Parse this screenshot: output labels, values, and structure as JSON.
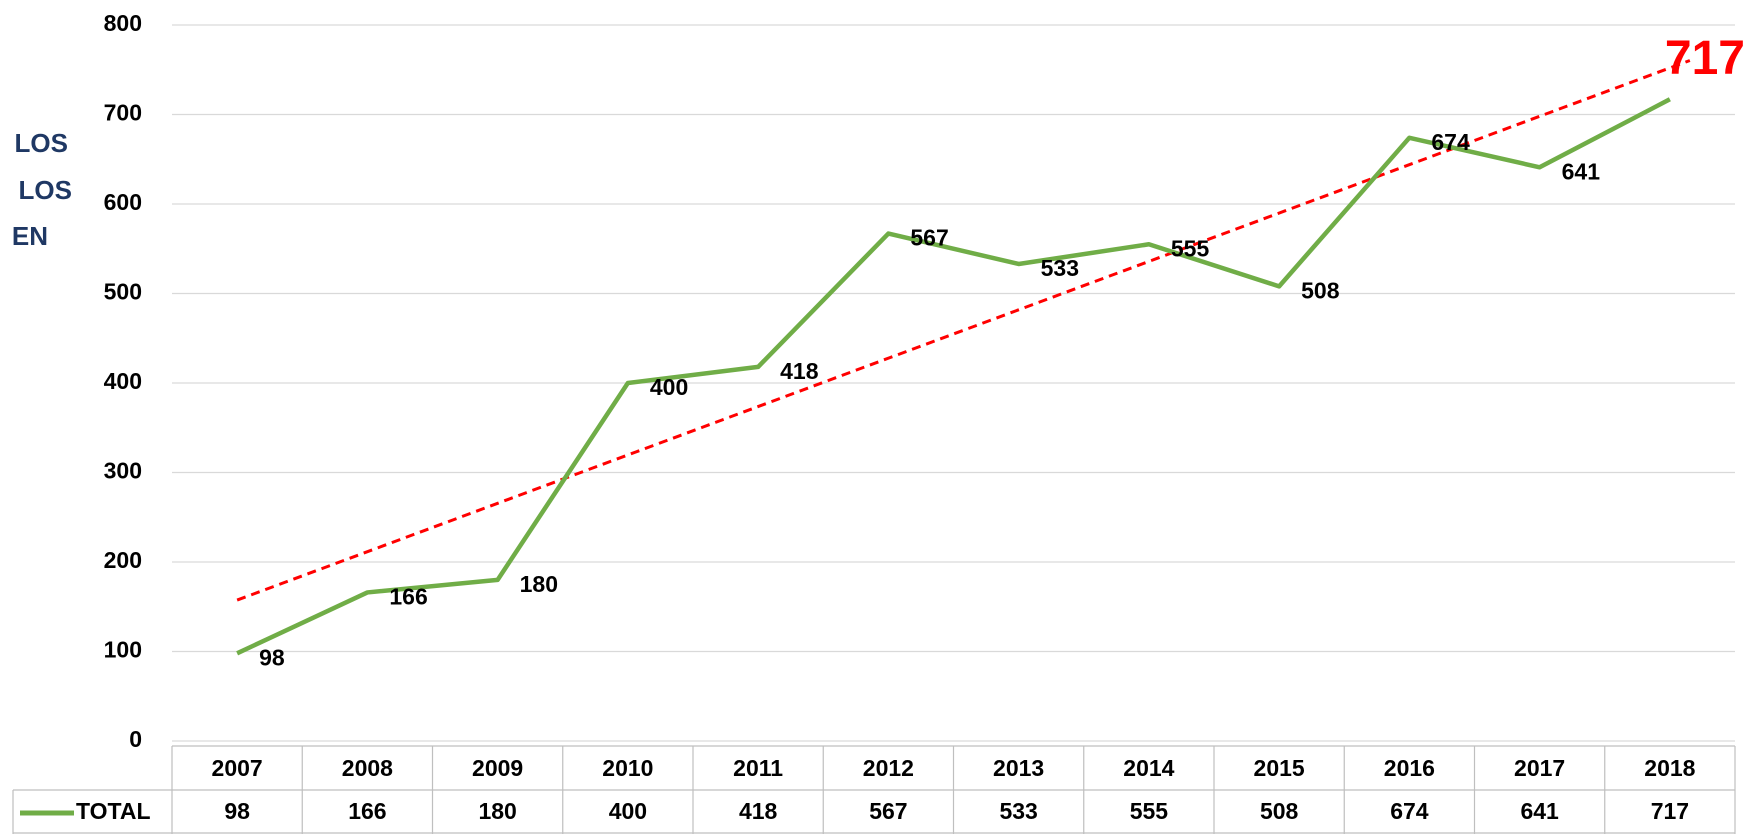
{
  "annotations": [
    "LOS",
    "LOS",
    "EN"
  ],
  "chart_data": {
    "type": "line",
    "categories": [
      "2007",
      "2008",
      "2009",
      "2010",
      "2011",
      "2012",
      "2013",
      "2014",
      "2015",
      "2016",
      "2017",
      "2018"
    ],
    "series": [
      {
        "name": "TOTAL",
        "color": "#70ad47",
        "values": [
          98,
          166,
          180,
          400,
          418,
          567,
          533,
          555,
          508,
          674,
          641,
          717
        ]
      }
    ],
    "ylim": [
      0,
      800
    ],
    "yticks": [
      0,
      100,
      200,
      300,
      400,
      500,
      600,
      700,
      800
    ],
    "grid": true,
    "data_table": true,
    "trendline": "linear",
    "trendline_color": "#ff0000"
  }
}
